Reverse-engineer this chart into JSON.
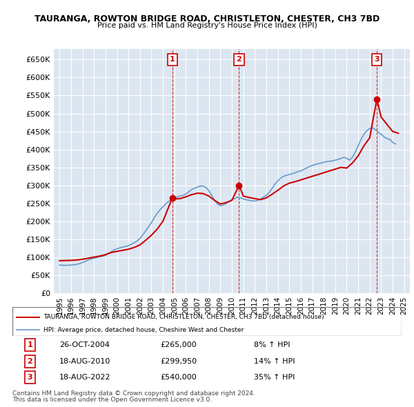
{
  "title": "TAURANGA, ROWTON BRIDGE ROAD, CHRISTLETON, CHESTER, CH3 7BD",
  "subtitle": "Price paid vs. HM Land Registry's House Price Index (HPI)",
  "hpi_label": "HPI: Average price, detached house, Cheshire West and Chester",
  "property_label": "TAURANGA, ROWTON BRIDGE ROAD, CHRISTLETON, CHESTER, CH3 7BD (detached house)",
  "ylim": [
    0,
    680000
  ],
  "yticks": [
    0,
    50000,
    100000,
    150000,
    200000,
    250000,
    300000,
    350000,
    400000,
    450000,
    500000,
    550000,
    600000,
    650000
  ],
  "ytick_labels": [
    "£0",
    "£50K",
    "£100K",
    "£150K",
    "£200K",
    "£250K",
    "£300K",
    "£350K",
    "£400K",
    "£450K",
    "£500K",
    "£550K",
    "£600K",
    "£650K"
  ],
  "xlim": [
    1994.5,
    2025.5
  ],
  "background_color": "#dce6f1",
  "plot_bg": "#dce6f1",
  "red_color": "#cc0000",
  "blue_color": "#6699cc",
  "sale1_year": 2004.82,
  "sale1_price": 265000,
  "sale1_label": "1",
  "sale1_date": "26-OCT-2004",
  "sale1_pct": "8%",
  "sale2_year": 2010.63,
  "sale2_price": 299950,
  "sale2_label": "2",
  "sale2_date": "18-AUG-2010",
  "sale2_pct": "14%",
  "sale3_year": 2022.63,
  "sale3_price": 540000,
  "sale3_label": "3",
  "sale3_date": "18-AUG-2022",
  "sale3_pct": "35%",
  "footer1": "Contains HM Land Registry data © Crown copyright and database right 2024.",
  "footer2": "This data is licensed under the Open Government Licence v3.0.",
  "hpi_data": {
    "years": [
      1995,
      1995.25,
      1995.5,
      1995.75,
      1996,
      1996.25,
      1996.5,
      1996.75,
      1997,
      1997.25,
      1997.5,
      1997.75,
      1998,
      1998.25,
      1998.5,
      1998.75,
      1999,
      1999.25,
      1999.5,
      1999.75,
      2000,
      2000.25,
      2000.5,
      2000.75,
      2001,
      2001.25,
      2001.5,
      2001.75,
      2002,
      2002.25,
      2002.5,
      2002.75,
      2003,
      2003.25,
      2003.5,
      2003.75,
      2004,
      2004.25,
      2004.5,
      2004.75,
      2005,
      2005.25,
      2005.5,
      2005.75,
      2006,
      2006.25,
      2006.5,
      2006.75,
      2007,
      2007.25,
      2007.5,
      2007.75,
      2008,
      2008.25,
      2008.5,
      2008.75,
      2009,
      2009.25,
      2009.5,
      2009.75,
      2010,
      2010.25,
      2010.5,
      2010.75,
      2011,
      2011.25,
      2011.5,
      2011.75,
      2012,
      2012.25,
      2012.5,
      2012.75,
      2013,
      2013.25,
      2013.5,
      2013.75,
      2014,
      2014.25,
      2014.5,
      2014.75,
      2015,
      2015.25,
      2015.5,
      2015.75,
      2016,
      2016.25,
      2016.5,
      2016.75,
      2017,
      2017.25,
      2017.5,
      2017.75,
      2018,
      2018.25,
      2018.5,
      2018.75,
      2019,
      2019.25,
      2019.5,
      2019.75,
      2020,
      2020.25,
      2020.5,
      2020.75,
      2021,
      2021.25,
      2021.5,
      2021.75,
      2022,
      2022.25,
      2022.5,
      2022.75,
      2023,
      2023.25,
      2023.5,
      2023.75,
      2024,
      2024.25
    ],
    "values": [
      78000,
      77500,
      77000,
      77500,
      78000,
      78500,
      80000,
      82000,
      85000,
      88000,
      92000,
      95000,
      97000,
      99000,
      101000,
      102000,
      105000,
      110000,
      115000,
      120000,
      123000,
      126000,
      128000,
      130000,
      132000,
      136000,
      140000,
      145000,
      152000,
      162000,
      173000,
      185000,
      196000,
      210000,
      222000,
      232000,
      240000,
      248000,
      255000,
      260000,
      265000,
      268000,
      270000,
      272000,
      276000,
      282000,
      288000,
      292000,
      295000,
      298000,
      298000,
      294000,
      285000,
      272000,
      258000,
      248000,
      243000,
      245000,
      249000,
      255000,
      260000,
      263000,
      267000,
      265000,
      262000,
      260000,
      258000,
      257000,
      256000,
      258000,
      262000,
      267000,
      272000,
      280000,
      291000,
      303000,
      312000,
      320000,
      325000,
      328000,
      330000,
      332000,
      335000,
      338000,
      340000,
      344000,
      348000,
      352000,
      355000,
      358000,
      360000,
      362000,
      364000,
      366000,
      367000,
      368000,
      370000,
      372000,
      375000,
      378000,
      375000,
      370000,
      378000,
      393000,
      410000,
      428000,
      442000,
      452000,
      458000,
      460000,
      455000,
      448000,
      442000,
      435000,
      430000,
      428000,
      420000,
      415000
    ]
  },
  "property_data": {
    "years": [
      1995,
      1995.5,
      1996,
      1996.5,
      1997,
      1997.5,
      1998,
      1998.5,
      1999,
      1999.5,
      2000,
      2000.5,
      2001,
      2001.5,
      2002,
      2002.5,
      2003,
      2003.5,
      2004,
      2004.82,
      2005,
      2005.5,
      2006,
      2006.5,
      2007,
      2007.5,
      2008,
      2008.5,
      2009,
      2009.5,
      2010,
      2010.63,
      2011,
      2011.5,
      2012,
      2012.5,
      2013,
      2013.5,
      2014,
      2014.5,
      2015,
      2015.5,
      2016,
      2016.5,
      2017,
      2017.5,
      2018,
      2018.5,
      2019,
      2019.5,
      2020,
      2020.5,
      2021,
      2021.5,
      2022,
      2022.63,
      2023,
      2023.5,
      2024,
      2024.5
    ],
    "values": [
      90000,
      90500,
      91000,
      92000,
      94000,
      97000,
      100000,
      103000,
      107000,
      113000,
      116000,
      119000,
      122000,
      127000,
      134000,
      147000,
      161000,
      178000,
      200000,
      265000,
      262000,
      263000,
      268000,
      274000,
      278000,
      277000,
      270000,
      258000,
      248000,
      252000,
      258000,
      299950,
      270000,
      266000,
      263000,
      260000,
      265000,
      275000,
      286000,
      298000,
      306000,
      310000,
      315000,
      320000,
      325000,
      330000,
      335000,
      340000,
      345000,
      350000,
      348000,
      362000,
      382000,
      410000,
      432000,
      540000,
      490000,
      470000,
      450000,
      445000
    ]
  }
}
